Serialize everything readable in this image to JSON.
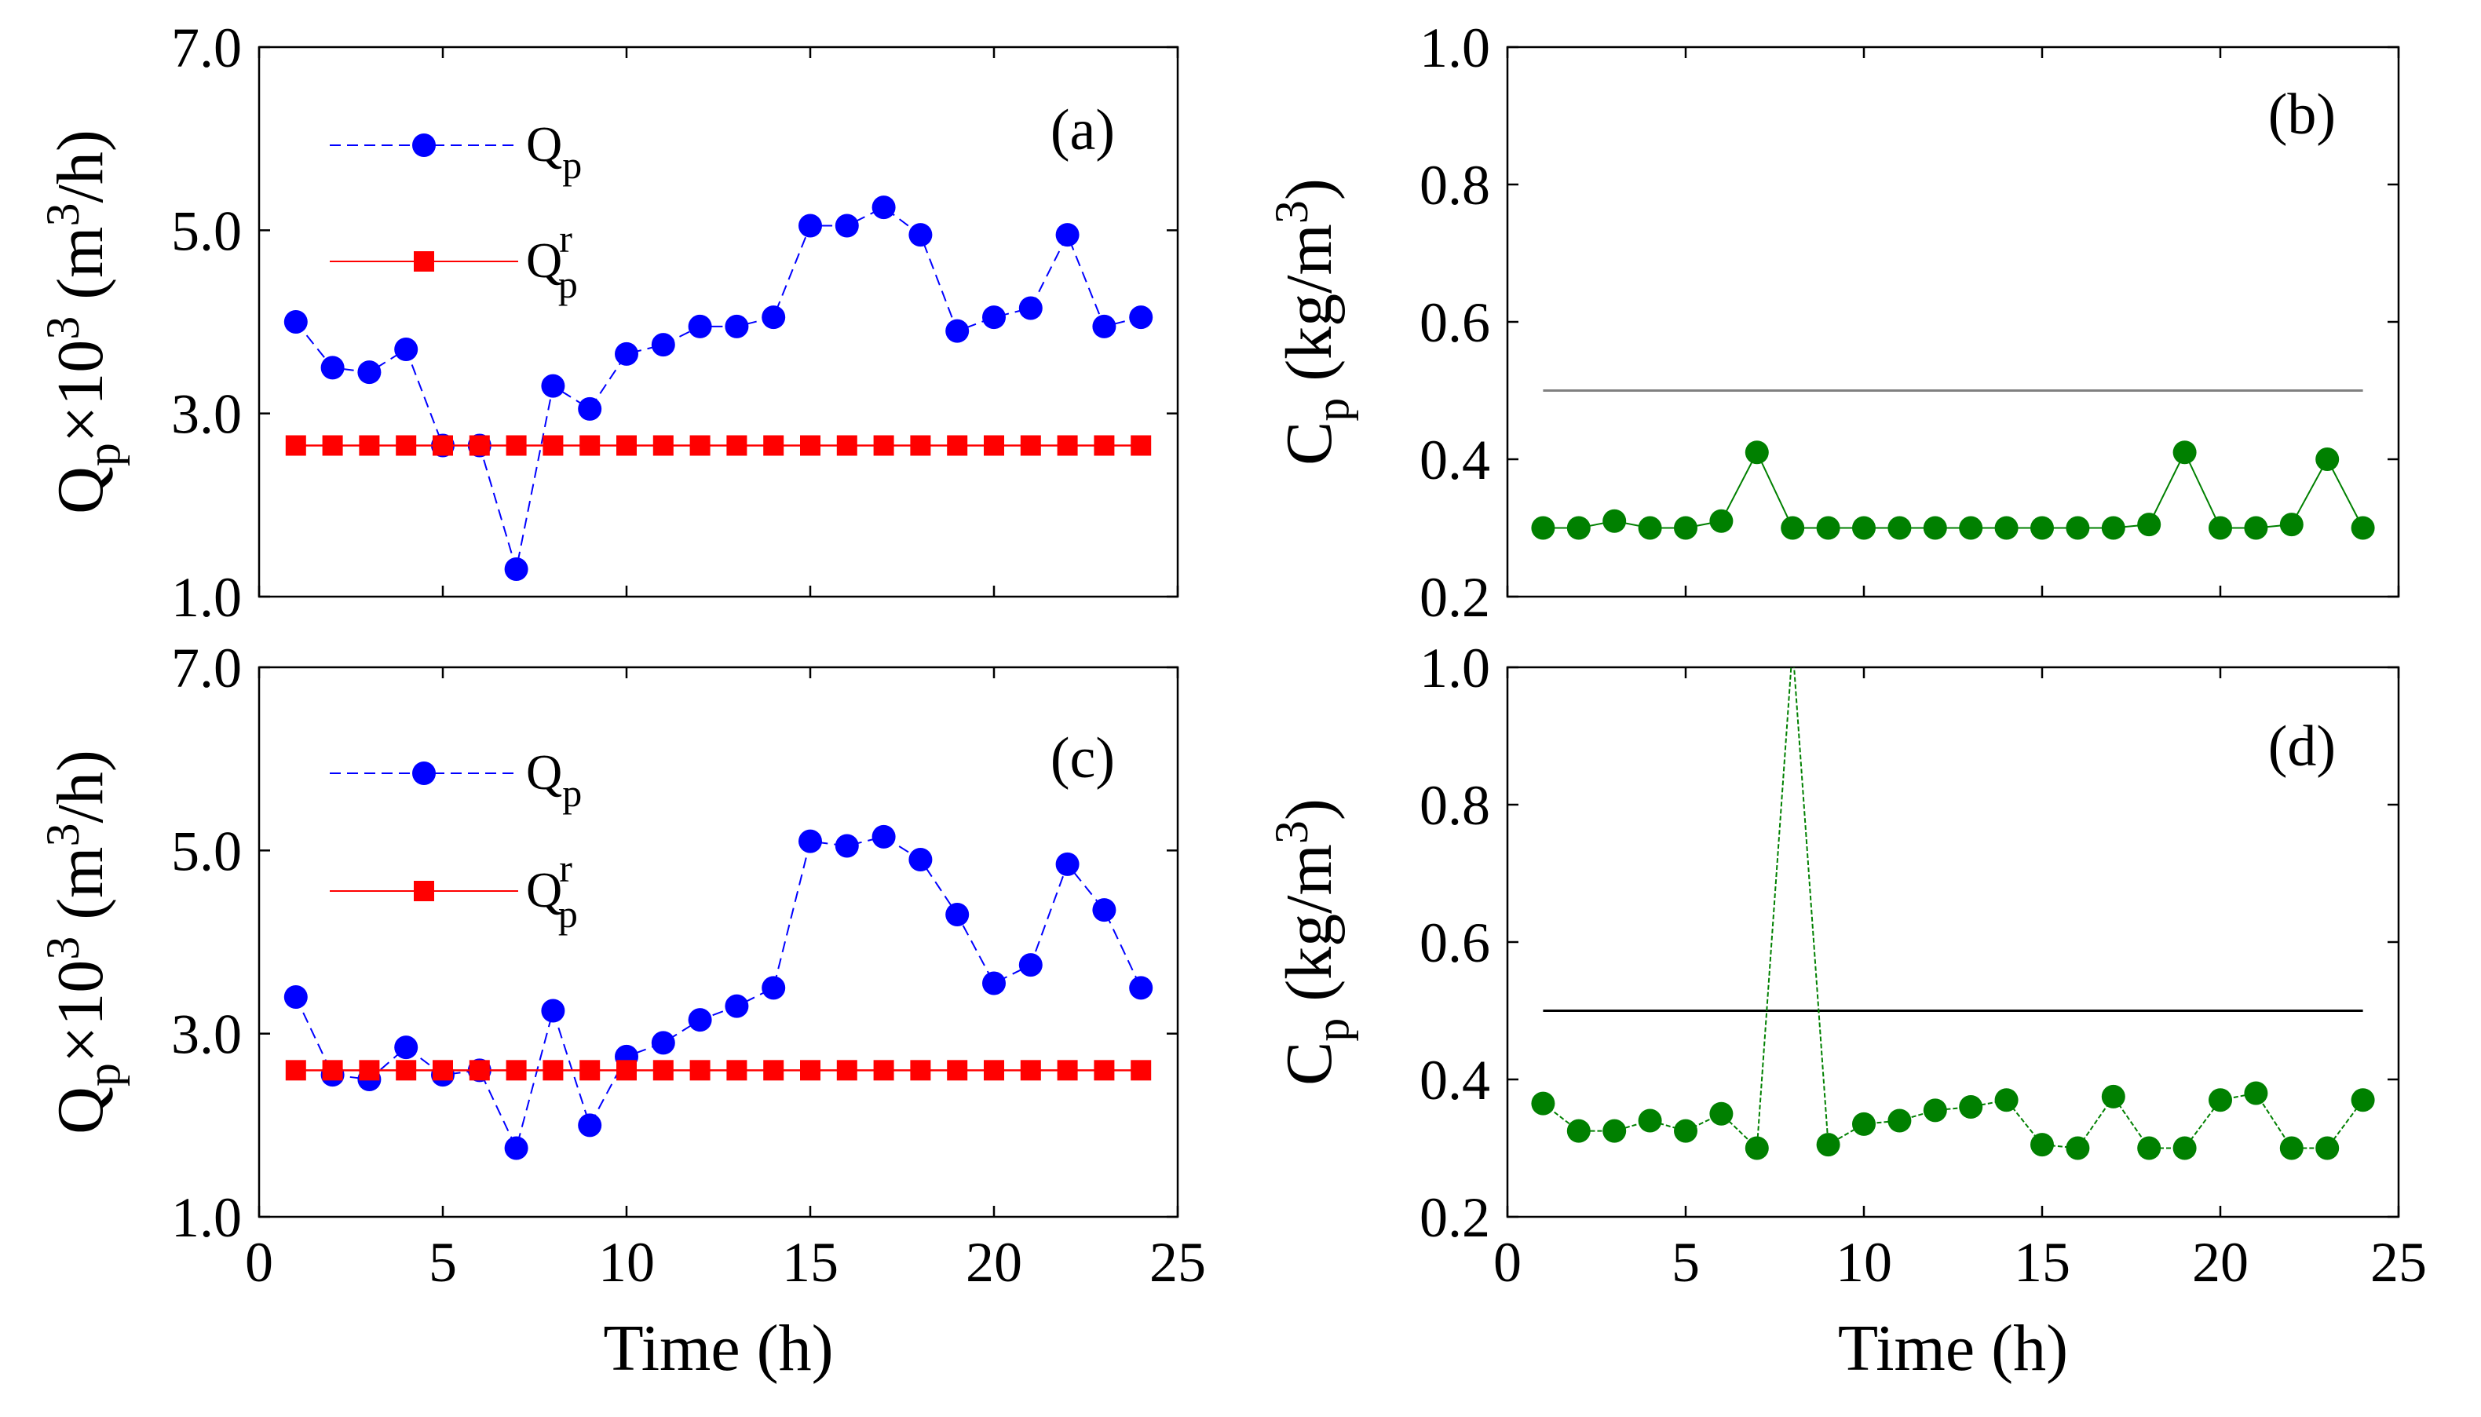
{
  "chart_data": [
    {
      "panel": "(a)",
      "type": "line",
      "ylabel": {
        "main": "Q",
        "sub": "p",
        "mid": "×10",
        "sup": "3",
        "unit_a": " (m",
        "unit_sup": "3",
        "unit_b": "/h)"
      },
      "xlim": [
        0,
        25
      ],
      "ylim": [
        1.0,
        7.0
      ],
      "yticks": [
        "1.0",
        "3.0",
        "5.0",
        "7.0"
      ],
      "ytick_values": [
        1,
        3,
        5,
        7
      ],
      "xticks": [
        "0",
        "5",
        "10",
        "15",
        "20",
        "25"
      ],
      "xtick_values": [
        0,
        5,
        10,
        15,
        20,
        25
      ],
      "show_xticklabels": false,
      "xlabel": "",
      "legend": [
        {
          "main": "Q",
          "sub": "p",
          "sup": ""
        },
        {
          "main": "Q",
          "sub": "p",
          "sup": "r"
        }
      ],
      "series": [
        {
          "name": "Qp",
          "color": "#0000ff",
          "marker": "circle",
          "x": [
            1,
            2,
            3,
            4,
            5,
            6,
            7,
            8,
            9,
            10,
            11,
            12,
            13,
            14,
            15,
            16,
            17,
            18,
            19,
            20,
            21,
            22,
            23,
            24
          ],
          "values": [
            4.0,
            3.5,
            3.45,
            3.7,
            2.65,
            2.65,
            1.3,
            3.3,
            3.05,
            3.65,
            3.75,
            3.95,
            3.95,
            4.05,
            5.05,
            5.05,
            5.25,
            4.95,
            3.9,
            4.05,
            4.15,
            4.95,
            3.95,
            4.05
          ]
        },
        {
          "name": "Qp_r",
          "color": "#ff0000",
          "marker": "square",
          "x": [
            1,
            2,
            3,
            4,
            5,
            6,
            7,
            8,
            9,
            10,
            11,
            12,
            13,
            14,
            15,
            16,
            17,
            18,
            19,
            20,
            21,
            22,
            23,
            24
          ],
          "values": [
            2.65,
            2.65,
            2.65,
            2.65,
            2.65,
            2.65,
            2.65,
            2.65,
            2.65,
            2.65,
            2.65,
            2.65,
            2.65,
            2.65,
            2.65,
            2.65,
            2.65,
            2.65,
            2.65,
            2.65,
            2.65,
            2.65,
            2.65,
            2.65
          ]
        }
      ]
    },
    {
      "panel": "(b)",
      "type": "line",
      "ylabel": {
        "main": "C",
        "sub": "p",
        "mid": "",
        "sup": "",
        "unit_a": " (kg/m",
        "unit_sup": "3",
        "unit_b": ")"
      },
      "xlim": [
        0,
        25
      ],
      "ylim": [
        0.2,
        1.0
      ],
      "yticks": [
        "0.2",
        "0.4",
        "0.6",
        "0.8",
        "1.0"
      ],
      "ytick_values": [
        0.2,
        0.4,
        0.6,
        0.8,
        1.0
      ],
      "xticks": [
        "0",
        "5",
        "10",
        "15",
        "20",
        "25"
      ],
      "xtick_values": [
        0,
        5,
        10,
        15,
        20,
        25
      ],
      "show_xticklabels": false,
      "xlabel": "",
      "threshold": {
        "value": 0.5,
        "x_range": [
          1,
          24
        ],
        "color": "#808080"
      },
      "series": [
        {
          "name": "Cp",
          "color": "#008000",
          "marker": "circle",
          "x": [
            1,
            2,
            3,
            4,
            5,
            6,
            7,
            8,
            9,
            10,
            11,
            12,
            13,
            14,
            15,
            16,
            17,
            18,
            19,
            20,
            21,
            22,
            23,
            24
          ],
          "values": [
            0.3,
            0.3,
            0.31,
            0.3,
            0.3,
            0.31,
            0.41,
            0.3,
            0.3,
            0.3,
            0.3,
            0.3,
            0.3,
            0.3,
            0.3,
            0.3,
            0.3,
            0.305,
            0.41,
            0.3,
            0.3,
            0.305,
            0.4,
            0.3
          ]
        }
      ]
    },
    {
      "panel": "(c)",
      "type": "line",
      "ylabel": {
        "main": "Q",
        "sub": "p",
        "mid": "×10",
        "sup": "3",
        "unit_a": " (m",
        "unit_sup": "3",
        "unit_b": "/h)"
      },
      "xlim": [
        0,
        25
      ],
      "ylim": [
        1.0,
        7.0
      ],
      "yticks": [
        "1.0",
        "3.0",
        "5.0",
        "7.0"
      ],
      "ytick_values": [
        1,
        3,
        5,
        7
      ],
      "xticks": [
        "0",
        "5",
        "10",
        "15",
        "20",
        "25"
      ],
      "xtick_values": [
        0,
        5,
        10,
        15,
        20,
        25
      ],
      "show_xticklabels": true,
      "xlabel": "Time (h)",
      "legend": [
        {
          "main": "Q",
          "sub": "p",
          "sup": ""
        },
        {
          "main": "Q",
          "sub": "p",
          "sup": "r"
        }
      ],
      "series": [
        {
          "name": "Qp",
          "color": "#0000ff",
          "marker": "circle",
          "x": [
            1,
            2,
            3,
            4,
            5,
            6,
            7,
            8,
            9,
            10,
            11,
            12,
            13,
            14,
            15,
            16,
            17,
            18,
            19,
            20,
            21,
            22,
            23,
            24
          ],
          "values": [
            3.4,
            2.55,
            2.5,
            2.85,
            2.55,
            2.6,
            1.75,
            3.25,
            2.0,
            2.75,
            2.9,
            3.15,
            3.3,
            3.5,
            5.1,
            5.05,
            5.15,
            4.9,
            4.3,
            3.55,
            3.75,
            4.85,
            4.35,
            3.5
          ]
        },
        {
          "name": "Qp_r",
          "color": "#ff0000",
          "marker": "square",
          "x": [
            1,
            2,
            3,
            4,
            5,
            6,
            7,
            8,
            9,
            10,
            11,
            12,
            13,
            14,
            15,
            16,
            17,
            18,
            19,
            20,
            21,
            22,
            23,
            24
          ],
          "values": [
            2.6,
            2.6,
            2.6,
            2.6,
            2.6,
            2.6,
            2.6,
            2.6,
            2.6,
            2.6,
            2.6,
            2.6,
            2.6,
            2.6,
            2.6,
            2.6,
            2.6,
            2.6,
            2.6,
            2.6,
            2.6,
            2.6,
            2.6,
            2.6
          ]
        }
      ]
    },
    {
      "panel": "(d)",
      "type": "line",
      "ylabel": {
        "main": "C",
        "sub": "p",
        "mid": "",
        "sup": "",
        "unit_a": " (kg/m",
        "unit_sup": "3",
        "unit_b": ")"
      },
      "xlim": [
        0,
        25
      ],
      "ylim": [
        0.2,
        1.0
      ],
      "yticks": [
        "0.2",
        "0.4",
        "0.6",
        "0.8",
        "1.0"
      ],
      "ytick_values": [
        0.2,
        0.4,
        0.6,
        0.8,
        1.0
      ],
      "xticks": [
        "0",
        "5",
        "10",
        "15",
        "20",
        "25"
      ],
      "xtick_values": [
        0,
        5,
        10,
        15,
        20,
        25
      ],
      "show_xticklabels": true,
      "xlabel": "Time (h)",
      "threshold": {
        "value": 0.5,
        "x_range": [
          1,
          24
        ],
        "color": "#000000"
      },
      "series": [
        {
          "name": "Cp",
          "color": "#008000",
          "marker": "circle",
          "x": [
            1,
            2,
            3,
            4,
            5,
            6,
            7,
            8,
            9,
            10,
            11,
            12,
            13,
            14,
            15,
            16,
            17,
            18,
            19,
            20,
            21,
            22,
            23,
            24
          ],
          "values": [
            0.365,
            0.325,
            0.325,
            0.34,
            0.325,
            0.35,
            0.3,
            1.03,
            0.305,
            0.335,
            0.34,
            0.355,
            0.36,
            0.37,
            0.305,
            0.3,
            0.375,
            0.3,
            0.3,
            0.37,
            0.38,
            0.3,
            0.3,
            0.37
          ],
          "marker_hidden_index": [
            7
          ]
        }
      ]
    }
  ]
}
